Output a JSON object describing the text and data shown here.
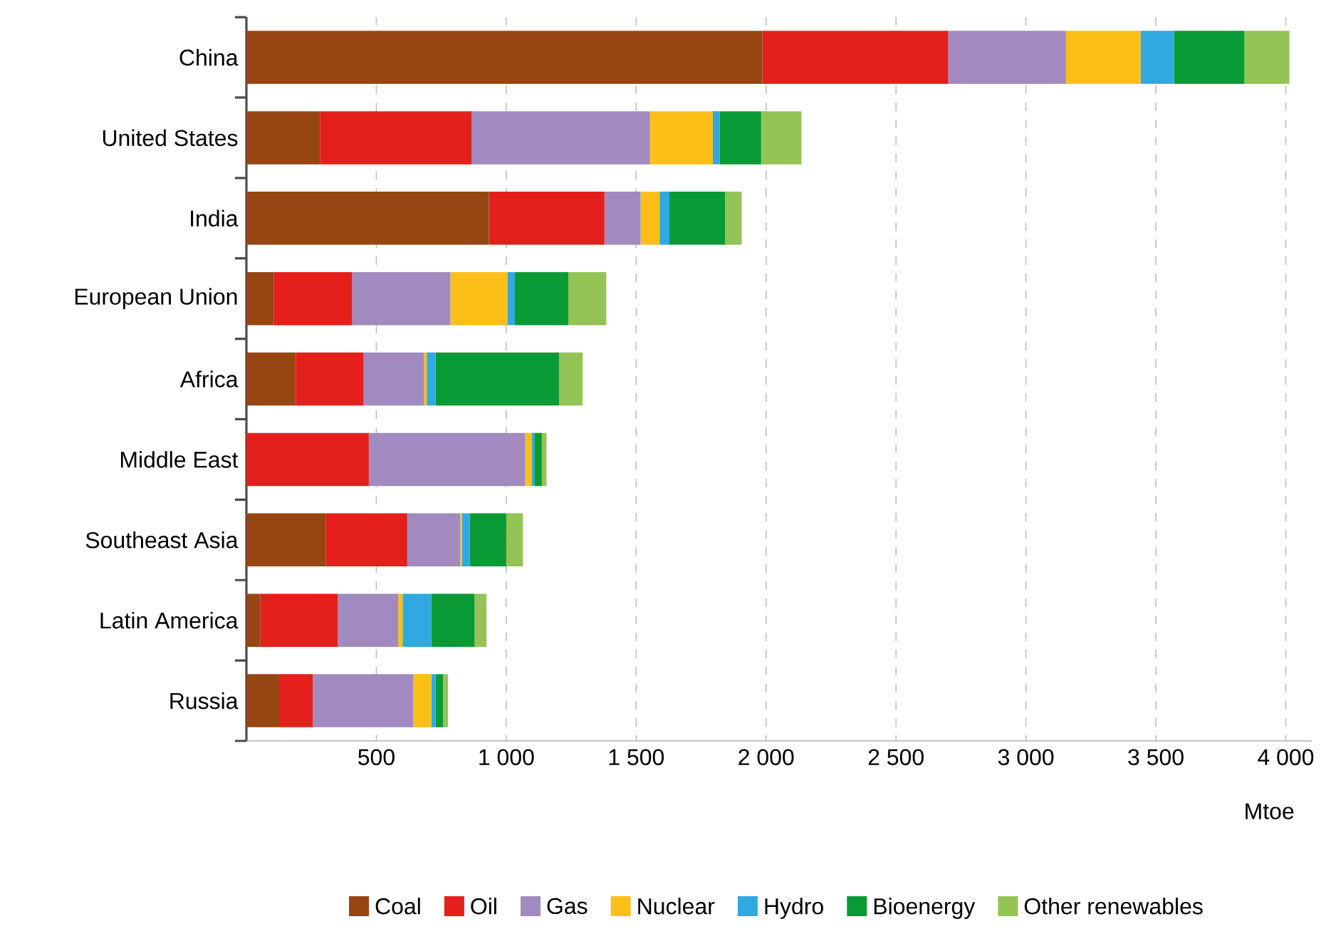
{
  "chart_data": {
    "type": "bar",
    "orientation": "horizontal",
    "stacked": true,
    "xlabel": "Mtoe",
    "categories": [
      "China",
      "United States",
      "India",
      "European Union",
      "Africa",
      "Middle East",
      "Southeast Asia",
      "Latin America",
      "Russia"
    ],
    "series": [
      {
        "name": "Coal",
        "color": "#974512",
        "values": [
          1986,
          283,
          933,
          106,
          190,
          0,
          305,
          53,
          126
        ]
      },
      {
        "name": "Oil",
        "color": "#e3201b",
        "values": [
          715,
          584,
          445,
          301,
          261,
          471,
          314,
          299,
          130
        ]
      },
      {
        "name": "Gas",
        "color": "#a08abf",
        "values": [
          453,
          686,
          139,
          378,
          233,
          602,
          204,
          232,
          386
        ]
      },
      {
        "name": "Nuclear",
        "color": "#fbbf17",
        "values": [
          287,
          242,
          73,
          219,
          10,
          26,
          7,
          17,
          70
        ]
      },
      {
        "name": "Hydro",
        "color": "#2fa9e0",
        "values": [
          129,
          27,
          38,
          29,
          34,
          9,
          30,
          111,
          16
        ]
      },
      {
        "name": "Bioenergy",
        "color": "#099a36",
        "values": [
          271,
          159,
          214,
          206,
          475,
          29,
          140,
          166,
          29
        ]
      },
      {
        "name": "Other renewables",
        "color": "#94c356",
        "values": [
          173,
          155,
          64,
          146,
          91,
          18,
          64,
          46,
          19
        ]
      }
    ],
    "xlim": [
      0,
      4100
    ],
    "xticks": [
      {
        "value": 500,
        "label": "500"
      },
      {
        "value": 1000,
        "label": "1 000"
      },
      {
        "value": 1500,
        "label": "1 500"
      },
      {
        "value": 2000,
        "label": "2 000"
      },
      {
        "value": 2500,
        "label": "2 500"
      },
      {
        "value": 3000,
        "label": "3 000"
      },
      {
        "value": 3500,
        "label": "3 500"
      },
      {
        "value": 4000,
        "label": "4 000"
      }
    ],
    "grid": "x",
    "legend": "bottom"
  }
}
